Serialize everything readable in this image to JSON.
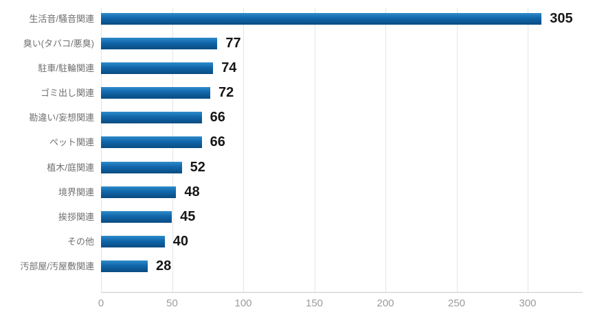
{
  "chart_data": {
    "type": "bar",
    "orientation": "horizontal",
    "title": "",
    "xlabel": "",
    "ylabel": "",
    "categories": [
      "生活音/騒音関連",
      "臭い(タバコ/悪臭)",
      "駐車/駐輪関連",
      "ゴミ出し関連",
      "勘違い/妄想関連",
      "ペット関連",
      "植木/庭関連",
      "境界関連",
      "挨拶関連",
      "その他",
      "汚部屋/汚屋敷関連"
    ],
    "values": [
      305,
      77,
      74,
      72,
      66,
      66,
      52,
      48,
      45,
      40,
      28
    ],
    "value_labels": [
      "305",
      "77",
      "74",
      "72",
      "66",
      "66",
      "52",
      "48",
      "45",
      "40",
      "28"
    ],
    "x_ticks": [
      0,
      50,
      100,
      150,
      200,
      250,
      300
    ],
    "xlim": [
      0,
      338
    ],
    "grid": true,
    "legend": false,
    "colors": {
      "bar_gradient_top": "#2f8cca",
      "bar_gradient_mid": "#1168ac",
      "bar_gradient_bottom": "#0a4b81",
      "value_label": "#161616",
      "category_label": "#6f6f6f",
      "tick_label": "#9b9b9b",
      "gridline": "#e4e4e4",
      "axis_line": "#c9c9c9",
      "background": "#ffffff"
    }
  }
}
